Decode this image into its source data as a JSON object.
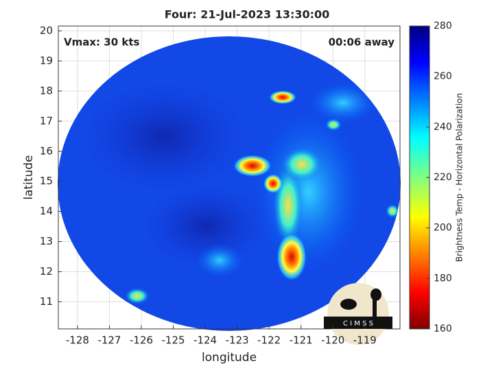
{
  "chart_data": {
    "type": "image",
    "title": "Four: 21-Jul-2023 13:30:00",
    "x_label": "longitude",
    "y_label": "latitude",
    "annotations": [
      "Vmax: 30 kts",
      "00:06 away"
    ],
    "logo_text": "C I M S S",
    "xlim": [
      -128.6,
      -117.9
    ],
    "ylim": [
      10.1,
      20.16
    ],
    "xticks": [
      -128,
      -127,
      -126,
      -125,
      -124,
      -123,
      -122,
      -121,
      -120,
      -119
    ],
    "yticks": [
      11,
      12,
      13,
      14,
      15,
      16,
      17,
      18,
      19,
      20
    ],
    "grid": true,
    "colorbar": {
      "label": "Brightness Temp - Horizontal Polarization",
      "clim": [
        160,
        280
      ],
      "ticks": [
        160,
        180,
        200,
        220,
        240,
        260,
        280
      ]
    }
  }
}
